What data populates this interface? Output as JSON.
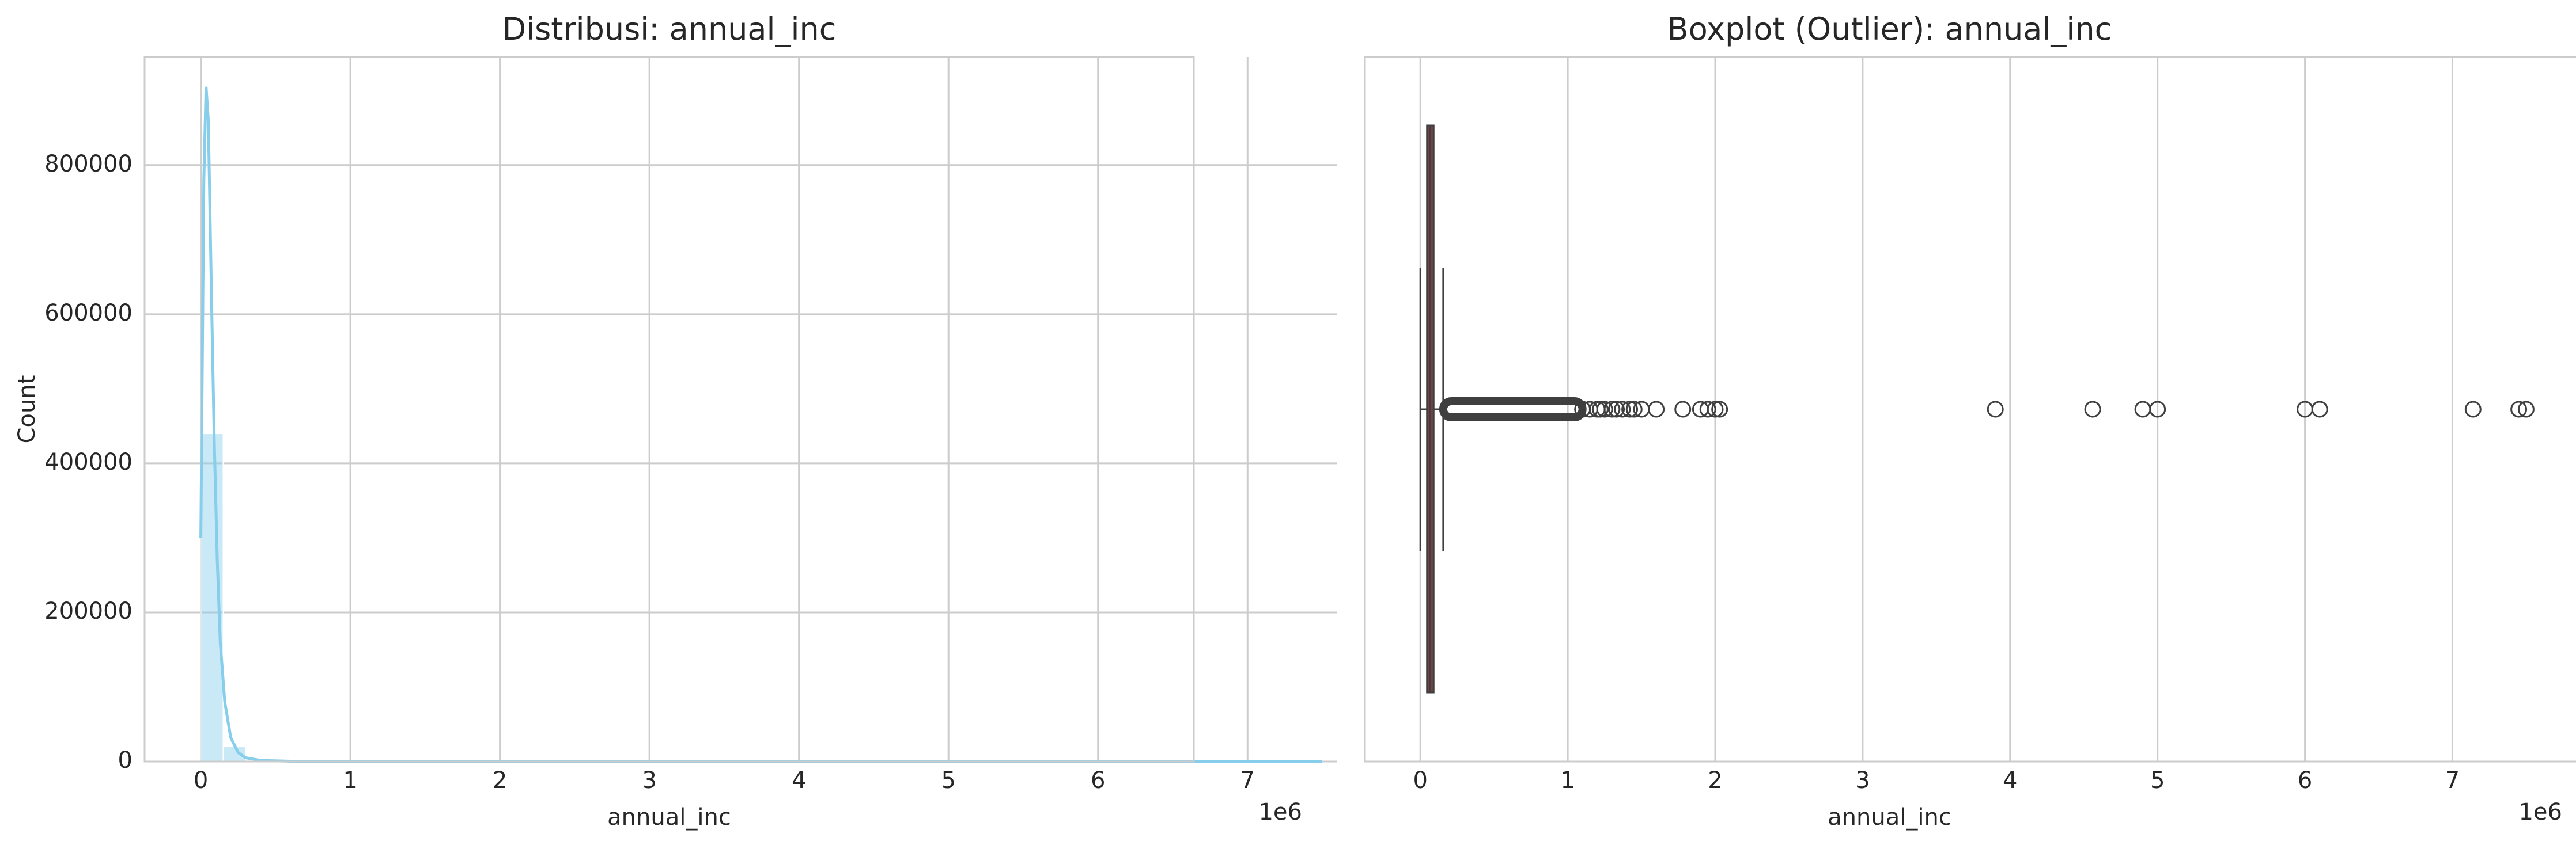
{
  "chart_data": [
    {
      "type": "histogram",
      "title": "Distribusi: annual_inc",
      "xlabel": "annual_inc",
      "ylabel": "Count",
      "x_offset_label": "1e6",
      "xlim": [
        -0.376,
        7.6
      ],
      "ylim": [
        0,
        945000
      ],
      "xticks": [
        0,
        1,
        2,
        3,
        4,
        5,
        6,
        7
      ],
      "xtick_labels": [
        "0",
        "1",
        "2",
        "3",
        "4",
        "5",
        "6",
        "7"
      ],
      "yticks": [
        0,
        200000,
        400000,
        600000,
        800000
      ],
      "ytick_labels": [
        "0",
        "200000",
        "400000",
        "600000",
        "800000"
      ],
      "grid": true,
      "bar_color": "#87ceeb",
      "kde_color": "#87ceeb",
      "bin_width": 0.15,
      "bins": [
        {
          "x0": 0.0,
          "count": 440000
        },
        {
          "x0": 0.15,
          "count": 20000
        },
        {
          "x0": 0.3,
          "count": 2000
        },
        {
          "x0": 0.45,
          "count": 500
        },
        {
          "x0": 0.6,
          "count": 200
        }
      ],
      "kde": [
        [
          0.0,
          300000
        ],
        [
          0.02,
          780000
        ],
        [
          0.035,
          905000
        ],
        [
          0.05,
          860000
        ],
        [
          0.07,
          640000
        ],
        [
          0.09,
          430000
        ],
        [
          0.11,
          270000
        ],
        [
          0.13,
          160000
        ],
        [
          0.16,
          80000
        ],
        [
          0.2,
          32000
        ],
        [
          0.25,
          12000
        ],
        [
          0.3,
          5000
        ],
        [
          0.4,
          1500
        ],
        [
          0.6,
          400
        ],
        [
          1.0,
          100
        ],
        [
          2.0,
          20
        ],
        [
          4.0,
          5
        ],
        [
          7.5,
          0
        ]
      ]
    },
    {
      "type": "boxplot",
      "title": "Boxplot (Outlier): annual_inc",
      "xlabel": "annual_inc",
      "x_offset_label": "1e6",
      "xlim": [
        -0.376,
        7.6
      ],
      "xticks": [
        0,
        1,
        2,
        3,
        4,
        5,
        6,
        7
      ],
      "xtick_labels": [
        "0",
        "1",
        "2",
        "3",
        "4",
        "5",
        "6",
        "7"
      ],
      "grid": true,
      "box_color": "#7b4043",
      "box": {
        "whisker_low": 0.0,
        "q1": 0.045,
        "median": 0.065,
        "q3": 0.09,
        "whisker_high": 0.155
      },
      "outlier_band": [
        0.155,
        1.1
      ],
      "outliers": [
        1.1,
        1.15,
        1.2,
        1.22,
        1.25,
        1.3,
        1.33,
        1.37,
        1.42,
        1.45,
        1.5,
        1.6,
        1.78,
        1.9,
        1.95,
        2.0,
        2.03,
        3.9,
        4.56,
        4.9,
        5.0,
        6.0,
        6.1,
        7.14,
        7.45,
        7.5
      ]
    }
  ]
}
